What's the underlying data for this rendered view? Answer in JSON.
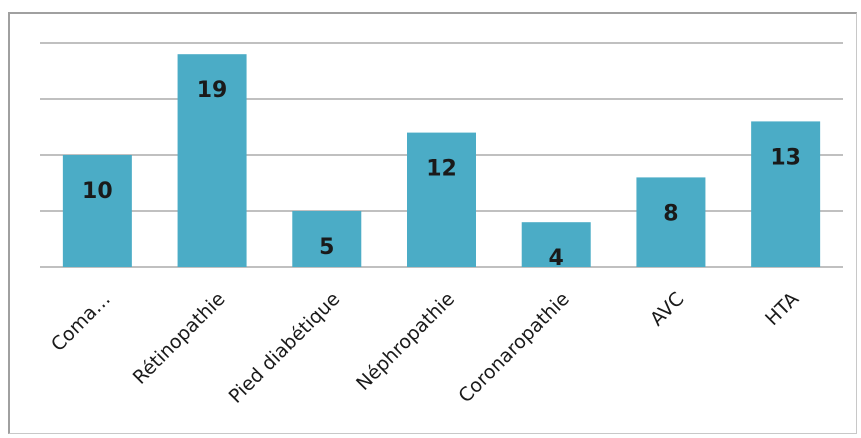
{
  "chart_data": {
    "type": "bar",
    "categories": [
      "Coma…",
      "Rétinopathie",
      "Pied diabétique",
      "Néphropathie",
      "Coronaropathie",
      "AVC",
      "HTA"
    ],
    "values": [
      10,
      19,
      5,
      12,
      4,
      8,
      13
    ],
    "ylim": [
      0,
      20
    ],
    "grid": true,
    "bar_color": "#4bacc6",
    "data_labels": true
  }
}
